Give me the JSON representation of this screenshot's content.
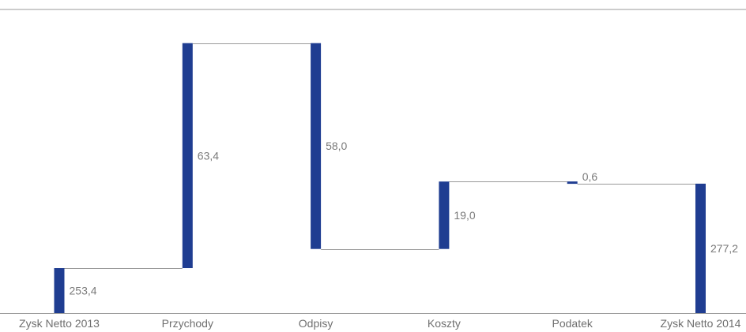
{
  "chart_data": {
    "type": "bar",
    "subtype": "waterfall",
    "categories": [
      "Zysk Netto 2013",
      "Przychody",
      "Odpisy",
      "Koszty",
      "Podatek",
      "Zysk Netto 2014"
    ],
    "bar_labels": [
      "253,4",
      "63,4",
      "58,0",
      "19,0",
      "0,6",
      "277,2"
    ],
    "steps": [
      {
        "category": "Zysk Netto 2013",
        "kind": "total",
        "start": 0,
        "end": 253.4
      },
      {
        "category": "Przychody",
        "kind": "increase",
        "start": 253.4,
        "end": 316.8
      },
      {
        "category": "Odpisy",
        "kind": "decrease",
        "start": 316.8,
        "end": 258.8
      },
      {
        "category": "Koszty",
        "kind": "increase",
        "start": 258.8,
        "end": 277.8
      },
      {
        "category": "Podatek",
        "kind": "decrease",
        "start": 277.8,
        "end": 277.2
      },
      {
        "category": "Zysk Netto 2014",
        "kind": "total",
        "start": 0,
        "end": 277.2
      }
    ],
    "y_axis": {
      "visible": false,
      "broken": true,
      "baseline_value": 0
    },
    "colors": {
      "bar": "#1f3d91",
      "connector": "#999999",
      "axis": "#9a9a9a",
      "label": "#7a7a7a"
    },
    "grid": false,
    "legend": "none"
  }
}
